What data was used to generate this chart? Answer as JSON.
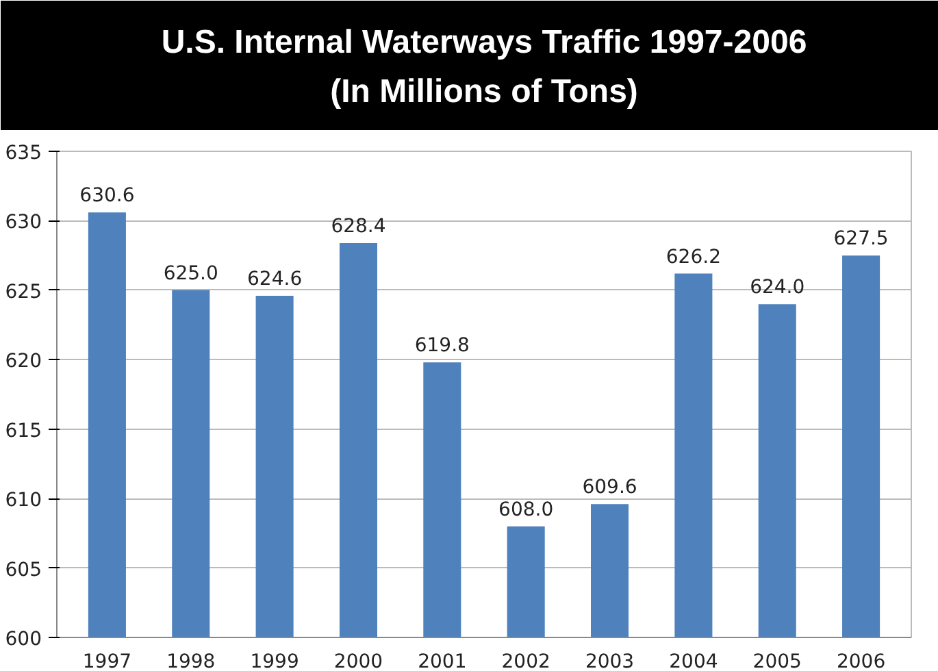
{
  "chart_data": {
    "type": "bar",
    "title": "U.S. Internal Waterways Traffic 1997-2006",
    "subtitle": "(In Millions of Tons)",
    "categories": [
      "1997",
      "1998",
      "1999",
      "2000",
      "2001",
      "2002",
      "2003",
      "2004",
      "2005",
      "2006"
    ],
    "values": [
      630.6,
      625.0,
      624.6,
      628.4,
      619.8,
      608.0,
      609.6,
      626.2,
      624.0,
      627.5
    ],
    "value_labels": [
      "630.6",
      "625.0",
      "624.6",
      "628.4",
      "619.8",
      "608.0",
      "609.6",
      "626.2",
      "624.0",
      "627.5"
    ],
    "color": "#4f81bd",
    "ylim": [
      600,
      635
    ],
    "yticks": [
      600,
      605,
      610,
      615,
      620,
      625,
      630,
      635
    ],
    "grid": "y"
  }
}
